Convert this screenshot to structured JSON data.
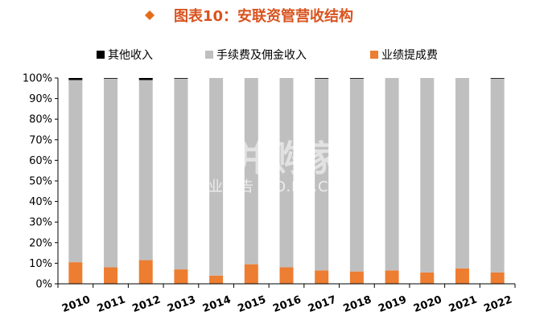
{
  "title": "图表10：安联资管营收结构",
  "watermark": {
    "main": "并购家",
    "sub": "行业报告 IPO.PO.CN"
  },
  "chart_data": {
    "type": "bar",
    "stacked": true,
    "percent": true,
    "categories": [
      "2010",
      "2011",
      "2012",
      "2013",
      "2014",
      "2015",
      "2016",
      "2017",
      "2018",
      "2019",
      "2020",
      "2021",
      "2022"
    ],
    "series": [
      {
        "name": "业绩提成费",
        "color": "#ed7d31",
        "values": [
          10.5,
          8.0,
          11.5,
          7.0,
          4.0,
          9.5,
          8.0,
          6.5,
          6.0,
          6.5,
          5.5,
          7.5,
          5.5
        ]
      },
      {
        "name": "手续费及佣金收入",
        "color": "#bfbfbf",
        "values": [
          88.5,
          91.8,
          87.5,
          92.8,
          96.0,
          90.5,
          92.0,
          93.3,
          93.8,
          93.5,
          94.5,
          92.5,
          94.2
        ]
      },
      {
        "name": "其他收入",
        "color": "#000000",
        "values": [
          1.0,
          0.2,
          1.0,
          0.2,
          0.0,
          0.0,
          0.0,
          0.2,
          0.2,
          0.0,
          0.0,
          0.0,
          0.3
        ]
      }
    ],
    "legend_order": [
      "其他收入",
      "手续费及佣金收入",
      "业绩提成费"
    ],
    "yticks": [
      "0%",
      "10%",
      "20%",
      "30%",
      "40%",
      "50%",
      "60%",
      "70%",
      "80%",
      "90%",
      "100%"
    ],
    "ylim": [
      0,
      100
    ],
    "legend_position": "top",
    "grid": false
  }
}
